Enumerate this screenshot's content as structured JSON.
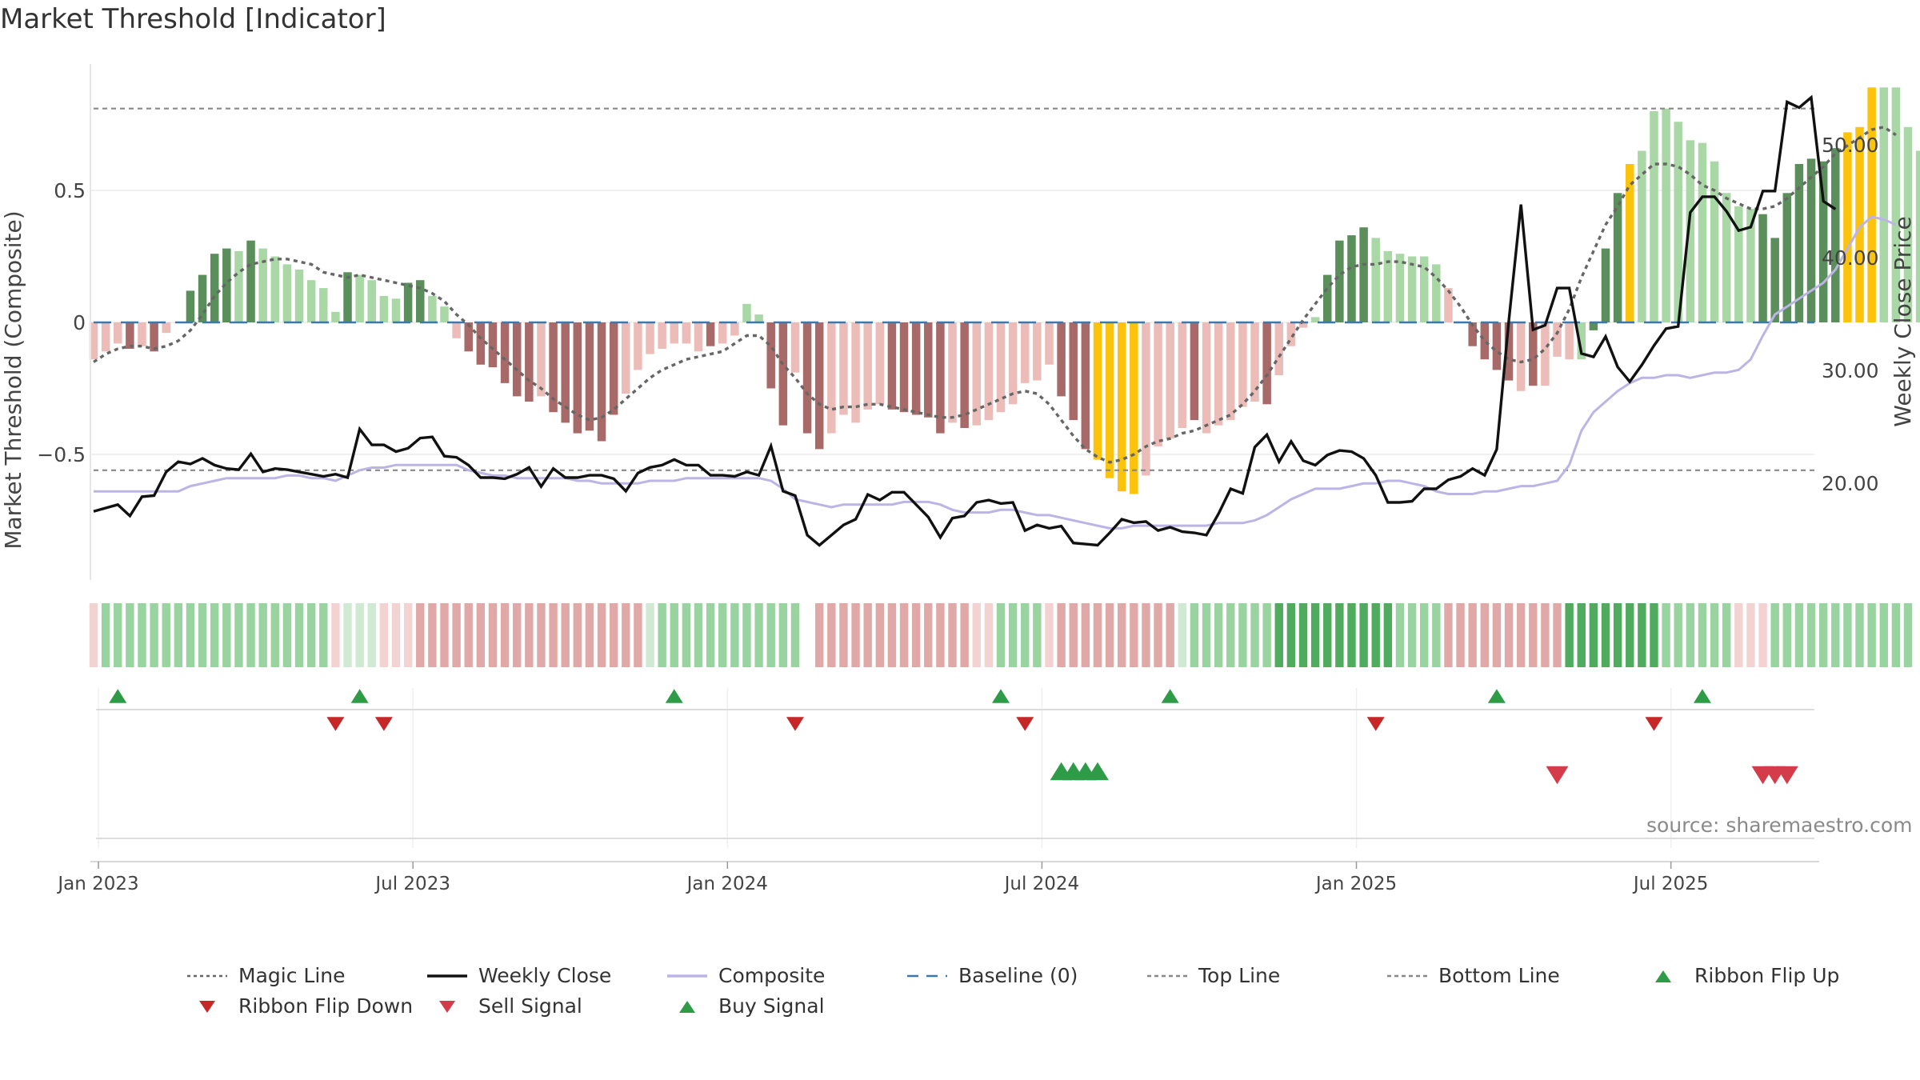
{
  "title": "Market Threshold [Indicator]",
  "source": "source: sharemaestro.com",
  "colors": {
    "dark_green": "#5a8e5a",
    "light_green": "#a9d8a6",
    "dark_red": "#a86a68",
    "light_red": "#ecbdb8",
    "gold": "#fbc30c",
    "magic_line": "#666666",
    "weekly_close": "#111111",
    "composite": "#bdb4e6",
    "baseline": "#3b78ad",
    "threshold_lines": "#888888",
    "buy": "#2e9b47",
    "sell": "#d43c4a",
    "flip_down": "#c62828"
  },
  "legend": [
    {
      "label": "Magic Line",
      "icon": "dotted-line"
    },
    {
      "label": "Weekly Close",
      "icon": "solid-line"
    },
    {
      "label": "Composite",
      "icon": "solid-line"
    },
    {
      "label": "Baseline (0)",
      "icon": "dashed-line"
    },
    {
      "label": "Top Line",
      "icon": "dashed-line"
    },
    {
      "label": "Bottom Line",
      "icon": "dashed-line"
    },
    {
      "label": "Ribbon Flip Up",
      "icon": "triangle-up"
    },
    {
      "label": "Ribbon Flip Down",
      "icon": "triangle-down"
    },
    {
      "label": "Sell Signal",
      "icon": "triangle-down"
    },
    {
      "label": "Buy Signal",
      "icon": "triangle-up"
    }
  ],
  "chart_data": {
    "type": "bar",
    "y_left_label": "Market Threshold (Composite)",
    "y_right_label": "Weekly Close Price",
    "y_left_ticks": [
      {
        "value": 0.5,
        "label": "0.5"
      },
      {
        "value": 0,
        "label": "0"
      },
      {
        "value": -0.5,
        "label": "−0.5"
      }
    ],
    "y_right_ticks": [
      {
        "value": 50,
        "label": "50.00"
      },
      {
        "value": 40,
        "label": "40.00"
      },
      {
        "value": 30,
        "label": "30.00"
      },
      {
        "value": 20,
        "label": "20.00"
      }
    ],
    "x_ticks": [
      {
        "week": 1,
        "label": "Jan 2023"
      },
      {
        "week": 27,
        "label": "Jul 2023"
      },
      {
        "week": 53,
        "label": "Jan 2024"
      },
      {
        "week": 79,
        "label": "Jul 2024"
      },
      {
        "week": 105,
        "label": "Jan 2025"
      },
      {
        "week": 131,
        "label": "Jul 2025"
      }
    ],
    "y_left_range": [
      -0.97,
      1.0
    ],
    "y_right_range": [
      12.0,
      56.0
    ],
    "top_line": 0.81,
    "bottom_line": -0.56,
    "weeks": 144,
    "composite_bars": [
      -0.14,
      -0.11,
      -0.08,
      -0.1,
      -0.09,
      -0.11,
      -0.04,
      0,
      0.12,
      0.18,
      0.26,
      0.28,
      0.27,
      0.31,
      0.28,
      0.25,
      0.22,
      0.2,
      0.16,
      0.13,
      0.04,
      0.19,
      0.18,
      0.16,
      0.1,
      0.09,
      0.15,
      0.16,
      0.1,
      0.06,
      -0.06,
      -0.11,
      -0.16,
      -0.17,
      -0.23,
      -0.28,
      -0.3,
      -0.28,
      -0.34,
      -0.38,
      -0.42,
      -0.41,
      -0.45,
      -0.35,
      -0.27,
      -0.18,
      -0.12,
      -0.1,
      -0.08,
      -0.08,
      -0.11,
      -0.09,
      -0.08,
      -0.05,
      0.07,
      0.03,
      -0.25,
      -0.39,
      -0.19,
      -0.42,
      -0.48,
      -0.42,
      -0.35,
      -0.38,
      -0.33,
      -0.31,
      -0.33,
      -0.34,
      -0.35,
      -0.36,
      -0.42,
      -0.38,
      -0.4,
      -0.39,
      -0.37,
      -0.34,
      -0.31,
      -0.23,
      -0.22,
      -0.16,
      -0.28,
      -0.37,
      -0.48,
      -0.52,
      -0.59,
      -0.64,
      -0.65,
      -0.58,
      -0.47,
      -0.44,
      -0.4,
      -0.37,
      -0.42,
      -0.39,
      -0.37,
      -0.32,
      -0.3,
      -0.31,
      -0.2,
      -0.09,
      -0.02,
      0.02,
      0.18,
      0.31,
      0.33,
      0.36,
      0.32,
      0.27,
      0.26,
      0.25,
      0.25,
      0.22,
      0.13,
      0,
      -0.09,
      -0.14,
      -0.18,
      -0.22,
      -0.26,
      -0.24,
      -0.24,
      -0.13,
      -0.14,
      -0.14,
      -0.03,
      0.28,
      0.49,
      0.6,
      0.65,
      0.8,
      0.81,
      0.76,
      0.69,
      0.68,
      0.61,
      0.49,
      0.44,
      0.43,
      0.41,
      0.32,
      0.49,
      0.6,
      0.62,
      0.61,
      0.66,
      0.72,
      0.74,
      0.89,
      0.89,
      0.89,
      0.74,
      0.65
    ],
    "bar_colors": [
      "LR",
      "LR",
      "LR",
      "DR",
      "LR",
      "DR",
      "LR",
      "LR",
      "DG",
      "DG",
      "DG",
      "DG",
      "LG",
      "DG",
      "LG",
      "LG",
      "LG",
      "LG",
      "LG",
      "LG",
      "LG",
      "DG",
      "LG",
      "LG",
      "LG",
      "LG",
      "DG",
      "DG",
      "LG",
      "LG",
      "LR",
      "DR",
      "DR",
      "DR",
      "DR",
      "DR",
      "DR",
      "LR",
      "DR",
      "DR",
      "DR",
      "DR",
      "DR",
      "DR",
      "LR",
      "LR",
      "LR",
      "LR",
      "LR",
      "LR",
      "LR",
      "DR",
      "LR",
      "LR",
      "LG",
      "LG",
      "DR",
      "DR",
      "LR",
      "DR",
      "DR",
      "LR",
      "LR",
      "LR",
      "LR",
      "LR",
      "DR",
      "DR",
      "DR",
      "DR",
      "DR",
      "LR",
      "DR",
      "LR",
      "LR",
      "LR",
      "LR",
      "LR",
      "LR",
      "LR",
      "DR",
      "DR",
      "DR",
      "GO",
      "GO",
      "GO",
      "GO",
      "LR",
      "LR",
      "LR",
      "LR",
      "DR",
      "LR",
      "LR",
      "LR",
      "LR",
      "LR",
      "DR",
      "LR",
      "LR",
      "LR",
      "LG",
      "DG",
      "DG",
      "DG",
      "DG",
      "LG",
      "LG",
      "LG",
      "LG",
      "LG",
      "LG",
      "LR",
      "LR",
      "DR",
      "DR",
      "DR",
      "DR",
      "LR",
      "DR",
      "LR",
      "LR",
      "LR",
      "LG",
      "DG",
      "DG",
      "DG",
      "GO",
      "LG",
      "LG",
      "LG",
      "LG",
      "LG",
      "LG",
      "LG",
      "LG",
      "LG",
      "LG",
      "DG",
      "DG",
      "DG",
      "DG",
      "DG",
      "DG",
      "DG",
      "GO",
      "GO",
      "GO",
      "LG",
      "LG"
    ],
    "magic_line": [
      -0.15,
      -0.12,
      -0.1,
      -0.09,
      -0.09,
      -0.1,
      -0.09,
      -0.07,
      -0.03,
      0.03,
      0.1,
      0.15,
      0.19,
      0.22,
      0.23,
      0.24,
      0.24,
      0.23,
      0.22,
      0.19,
      0.18,
      0.17,
      0.18,
      0.17,
      0.16,
      0.15,
      0.14,
      0.13,
      0.11,
      0.08,
      0.03,
      -0.01,
      -0.06,
      -0.1,
      -0.14,
      -0.18,
      -0.22,
      -0.25,
      -0.29,
      -0.32,
      -0.35,
      -0.37,
      -0.36,
      -0.33,
      -0.29,
      -0.25,
      -0.21,
      -0.18,
      -0.16,
      -0.14,
      -0.13,
      -0.12,
      -0.11,
      -0.08,
      -0.05,
      -0.05,
      -0.09,
      -0.16,
      -0.21,
      -0.27,
      -0.31,
      -0.33,
      -0.32,
      -0.32,
      -0.31,
      -0.31,
      -0.32,
      -0.33,
      -0.34,
      -0.35,
      -0.36,
      -0.36,
      -0.35,
      -0.33,
      -0.31,
      -0.29,
      -0.27,
      -0.26,
      -0.27,
      -0.31,
      -0.37,
      -0.43,
      -0.48,
      -0.51,
      -0.53,
      -0.52,
      -0.5,
      -0.47,
      -0.45,
      -0.44,
      -0.42,
      -0.41,
      -0.39,
      -0.37,
      -0.35,
      -0.31,
      -0.26,
      -0.2,
      -0.13,
      -0.06,
      0.01,
      0.07,
      0.13,
      0.18,
      0.21,
      0.22,
      0.22,
      0.23,
      0.23,
      0.22,
      0.21,
      0.17,
      0.12,
      0.06,
      -0.01,
      -0.07,
      -0.11,
      -0.14,
      -0.15,
      -0.14,
      -0.1,
      -0.04,
      0.05,
      0.17,
      0.27,
      0.37,
      0.44,
      0.52,
      0.56,
      0.6,
      0.6,
      0.59,
      0.56,
      0.52,
      0.5,
      0.47,
      0.45,
      0.43,
      0.43,
      0.44,
      0.47,
      0.51,
      0.55,
      0.59,
      0.64,
      0.67,
      0.7,
      0.73,
      0.74,
      0.71
    ],
    "composite_line": [
      -0.64,
      -0.64,
      -0.64,
      -0.64,
      -0.64,
      -0.64,
      -0.64,
      -0.64,
      -0.62,
      -0.61,
      -0.6,
      -0.59,
      -0.59,
      -0.59,
      -0.59,
      -0.59,
      -0.58,
      -0.58,
      -0.59,
      -0.59,
      -0.6,
      -0.58,
      -0.56,
      -0.55,
      -0.55,
      -0.54,
      -0.54,
      -0.54,
      -0.54,
      -0.54,
      -0.54,
      -0.56,
      -0.57,
      -0.58,
      -0.58,
      -0.59,
      -0.59,
      -0.59,
      -0.59,
      -0.59,
      -0.6,
      -0.6,
      -0.61,
      -0.61,
      -0.61,
      -0.61,
      -0.6,
      -0.6,
      -0.6,
      -0.59,
      -0.59,
      -0.59,
      -0.59,
      -0.59,
      -0.59,
      -0.59,
      -0.6,
      -0.63,
      -0.67,
      -0.68,
      -0.69,
      -0.7,
      -0.69,
      -0.69,
      -0.69,
      -0.69,
      -0.69,
      -0.68,
      -0.68,
      -0.68,
      -0.69,
      -0.71,
      -0.72,
      -0.72,
      -0.72,
      -0.71,
      -0.71,
      -0.72,
      -0.73,
      -0.73,
      -0.74,
      -0.75,
      -0.76,
      -0.77,
      -0.78,
      -0.78,
      -0.77,
      -0.77,
      -0.77,
      -0.77,
      -0.77,
      -0.77,
      -0.77,
      -0.76,
      -0.76,
      -0.76,
      -0.75,
      -0.73,
      -0.7,
      -0.67,
      -0.65,
      -0.63,
      -0.63,
      -0.63,
      -0.62,
      -0.61,
      -0.61,
      -0.6,
      -0.6,
      -0.61,
      -0.62,
      -0.64,
      -0.65,
      -0.65,
      -0.65,
      -0.64,
      -0.64,
      -0.63,
      -0.62,
      -0.62,
      -0.61,
      -0.6,
      -0.54,
      -0.41,
      -0.34,
      -0.3,
      -0.26,
      -0.23,
      -0.21,
      -0.21,
      -0.2,
      -0.2,
      -0.21,
      -0.2,
      -0.19,
      -0.19,
      -0.18,
      -0.14,
      -0.05,
      0.03,
      0.06,
      0.09,
      0.12,
      0.15,
      0.2,
      0.28,
      0.36,
      0.4,
      0.39,
      0.37
    ],
    "weekly_close": [
      17.5,
      17.8,
      18.1,
      17.1,
      18.8,
      18.9,
      21.0,
      21.9,
      21.7,
      22.2,
      21.6,
      21.3,
      21.2,
      22.6,
      21.0,
      21.3,
      21.2,
      21.0,
      20.8,
      20.6,
      20.8,
      20.5,
      24.8,
      23.4,
      23.4,
      22.8,
      23.1,
      24.0,
      24.1,
      22.4,
      22.3,
      21.6,
      20.5,
      20.5,
      20.4,
      20.8,
      21.4,
      19.7,
      21.3,
      20.5,
      20.5,
      20.7,
      20.7,
      20.4,
      19.3,
      20.9,
      21.4,
      21.6,
      22.1,
      21.6,
      21.6,
      20.7,
      20.7,
      20.6,
      21.0,
      20.7,
      23.3,
      19.3,
      18.9,
      15.4,
      14.5,
      15.4,
      16.3,
      16.8,
      19.0,
      18.5,
      19.2,
      19.2,
      18.1,
      17.0,
      15.2,
      16.9,
      17.1,
      18.3,
      18.5,
      18.2,
      18.3,
      15.8,
      16.3,
      16.0,
      16.2,
      14.7,
      14.6,
      14.5,
      15.6,
      16.8,
      16.5,
      16.6,
      15.8,
      16.1,
      15.7,
      15.6,
      15.4,
      17.3,
      19.5,
      19.1,
      23.2,
      24.3,
      21.9,
      23.7,
      22.0,
      21.6,
      22.5,
      22.9,
      22.8,
      22.2,
      20.7,
      18.3,
      18.3,
      18.4,
      19.5,
      19.5,
      20.3,
      20.6,
      21.3,
      20.7,
      23.0,
      34.4,
      44.7,
      33.6,
      34.0,
      37.3,
      37.3,
      31.5,
      31.2,
      33.0,
      30.3,
      29.0,
      30.5,
      32.2,
      33.7,
      33.9,
      44.0,
      45.4,
      45.4,
      44.1,
      42.4,
      42.7,
      45.9,
      45.9,
      53.8,
      53.3,
      54.2,
      45.0,
      44.3
    ],
    "ribbon_colors": [
      "LR",
      "MG",
      "MG",
      "MG",
      "MG",
      "MG",
      "MG",
      "MG",
      "MG",
      "MG",
      "MG",
      "MG",
      "MG",
      "MG",
      "MG",
      "MG",
      "MG",
      "MG",
      "MG",
      "MG",
      "LR",
      "LG",
      "LG",
      "LG",
      "LR",
      "LR",
      "LR",
      "MR",
      "MR",
      "MR",
      "MR",
      "MR",
      "MR",
      "MR",
      "MR",
      "MR",
      "MR",
      "MR",
      "MR",
      "MR",
      "MR",
      "MR",
      "MR",
      "MR",
      "MR",
      "MR",
      "LG",
      "MG",
      "MG",
      "MG",
      "MG",
      "MG",
      "MG",
      "MG",
      "MG",
      "MG",
      "MG",
      "MG",
      "MG",
      "GAP",
      "MR",
      "MR",
      "MR",
      "MR",
      "MR",
      "MR",
      "MR",
      "MR",
      "MR",
      "MR",
      "MR",
      "MR",
      "MR",
      "LR",
      "LR",
      "MG",
      "MG",
      "MG",
      "MG",
      "LR",
      "MR",
      "MR",
      "MR",
      "MR",
      "MR",
      "MR",
      "MR",
      "MR",
      "MR",
      "MR",
      "LG",
      "MG",
      "MG",
      "MG",
      "MG",
      "MG",
      "MG",
      "MG",
      "DG",
      "DG",
      "DG",
      "DG",
      "DG",
      "DG",
      "DG",
      "DG",
      "DG",
      "DG",
      "MG",
      "MG",
      "MG",
      "MG",
      "MR",
      "MR",
      "MR",
      "MR",
      "MR",
      "MR",
      "MR",
      "MR",
      "MR",
      "MR",
      "DG",
      "DG",
      "DG",
      "DG",
      "DG",
      "DG",
      "DG",
      "DG",
      "MG",
      "MG",
      "MG",
      "MG",
      "MG",
      "MG",
      "LR",
      "LR",
      "LR",
      "MG",
      "MG",
      "MG",
      "MG",
      "MG",
      "MG",
      "MG",
      "MG",
      "MG",
      "MG",
      "MG",
      "MG"
    ],
    "ribbon_flip_up_weeks": [
      2,
      22,
      48,
      75,
      89,
      116,
      133
    ],
    "ribbon_flip_down_weeks": [
      20,
      24,
      58,
      77,
      106,
      129
    ],
    "buy_signal_weeks": [
      80,
      81,
      82,
      83
    ],
    "sell_signal_weeks": [
      121,
      138,
      139,
      140
    ]
  }
}
